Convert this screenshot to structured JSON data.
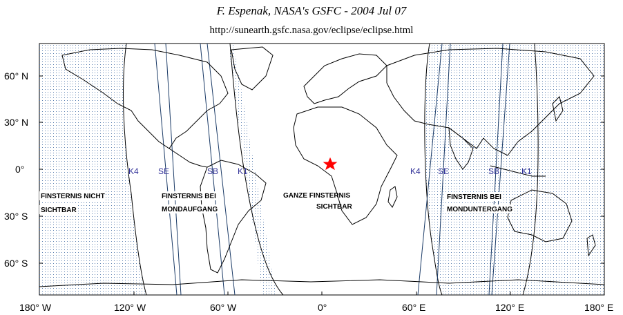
{
  "header": {
    "credit": "F. Espenak, NASA's GSFC - 2004 Jul 07",
    "url": "http://sunearth.gsfc.nasa.gov/eclipse/eclipse.html"
  },
  "axes": {
    "longitude_labels": [
      "180° W",
      "120° W",
      "60° W",
      "0°",
      "60° E",
      "120° E",
      "180° E"
    ],
    "latitude_labels": [
      "60° N",
      "30° N",
      "0°",
      "30° S",
      "60° S"
    ]
  },
  "curve_labels": {
    "west": [
      "K4",
      "SE",
      "SB",
      "K1"
    ],
    "east": [
      "K4",
      "SE",
      "SB",
      "K1"
    ]
  },
  "zones": {
    "not_visible": [
      "FINSTERNIS NICHT",
      "SICHTBAR"
    ],
    "moonrise": [
      "FINSTERNIS BEI",
      "MONDAUFGANG"
    ],
    "total": [
      "GANZE  FINSTERNIS",
      "SICHTBAR"
    ],
    "moonset": [
      "FINSTERNIS BEI",
      "MONDUNTERGANG"
    ]
  },
  "colors": {
    "stipple": "#5a7fb0",
    "contact_lines": "#1a3a66",
    "labels": "#333399",
    "marker": "#ff0000"
  },
  "marker_icon": "red-star-icon"
}
